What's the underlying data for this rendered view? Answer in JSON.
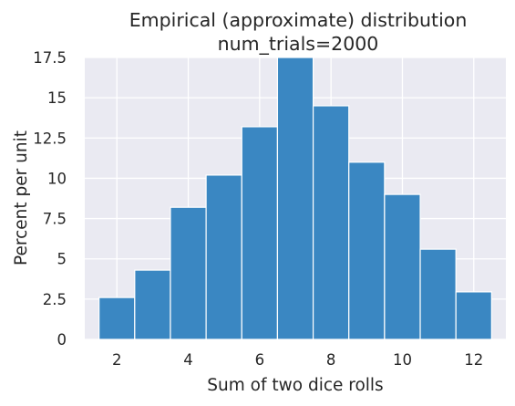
{
  "chart_data": {
    "type": "bar",
    "title_line1": "Empirical (approximate) distribution",
    "title_line2": "num_trials=2000",
    "xlabel": "Sum of two dice rolls",
    "ylabel": "Percent per unit",
    "categories": [
      2,
      3,
      4,
      5,
      6,
      7,
      8,
      9,
      10,
      11,
      12
    ],
    "values": [
      2.6,
      4.3,
      8.2,
      10.2,
      13.2,
      17.5,
      14.5,
      11.0,
      9.0,
      5.6,
      2.95
    ],
    "bin_width": 1,
    "xlim": [
      1.1,
      12.9
    ],
    "ylim": [
      0,
      17.5
    ],
    "xticks": [
      2,
      4,
      6,
      8,
      10,
      12
    ],
    "xtick_labels": [
      "2",
      "4",
      "6",
      "8",
      "10",
      "12"
    ],
    "yticks": [
      0,
      2.5,
      5,
      7.5,
      10,
      12.5,
      15,
      17.5
    ],
    "ytick_labels": [
      "0",
      "2.5",
      "5",
      "7.5",
      "10",
      "12.5",
      "15",
      "17.5"
    ],
    "grid": true,
    "bar_color": "#3a87c2",
    "bar_edge_color": "#ffffff",
    "plot_background": "#eaeaf2",
    "grid_color": "#ffffff"
  }
}
